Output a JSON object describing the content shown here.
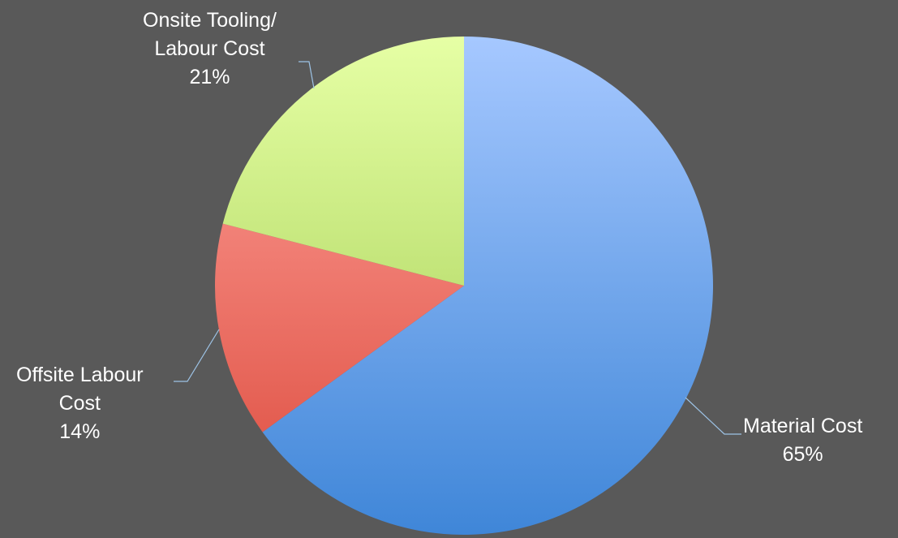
{
  "chart_data": {
    "type": "pie",
    "title": "",
    "slices": [
      {
        "label_lines": [
          "Material Cost"
        ],
        "value": 65,
        "percent_text": "65%",
        "color_top": "#a6c8ff",
        "color_bottom": "#3f86d8"
      },
      {
        "label_lines": [
          "Offsite Labour",
          "Cost"
        ],
        "value": 14,
        "percent_text": "14%",
        "color_top": "#ffa39c",
        "color_bottom": "#dc4a3c"
      },
      {
        "label_lines": [
          "Onsite Tooling/",
          "Labour Cost"
        ],
        "value": 21,
        "percent_text": "21%",
        "color_top": "#e6ffa5",
        "color_bottom": "#9cc84a"
      }
    ],
    "start_angle_deg": 0,
    "direction": "clockwise",
    "legend": "none",
    "background_color": "#595959",
    "label_color": "#ffffff",
    "leader_line_color": "#9dc3e6"
  }
}
